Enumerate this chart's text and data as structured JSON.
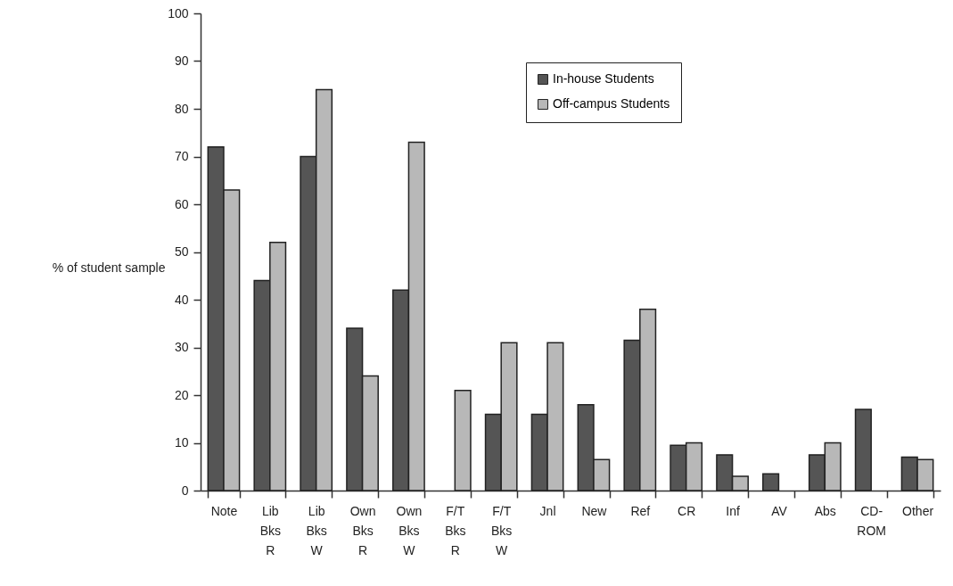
{
  "chart_data": {
    "type": "bar",
    "ylabel": "% of student sample",
    "categories": [
      "Note",
      "Lib Bks R",
      "Lib Bks W",
      "Own Bks R",
      "Own Bks W",
      "F/T Bks R",
      "F/T Bks W",
      "Jnl",
      "New",
      "Ref",
      "CR",
      "Inf",
      "AV",
      "Abs",
      "CD- ROM",
      "Other"
    ],
    "series": [
      {
        "name": "In-house Students",
        "color": "#555555",
        "values": [
          72,
          44,
          70,
          34,
          42,
          null,
          16,
          16,
          18,
          31.5,
          9.5,
          7.5,
          3.5,
          7.5,
          17,
          7
        ]
      },
      {
        "name": "Off-campus Students",
        "color": "#b8b8b8",
        "values": [
          63,
          52,
          84,
          24,
          73,
          21,
          31,
          31,
          6.5,
          38,
          10,
          3,
          null,
          10,
          null,
          6.5
        ]
      }
    ],
    "ylim": [
      0,
      100
    ],
    "yticks": [
      0,
      10,
      20,
      30,
      40,
      50,
      60,
      70,
      80,
      90,
      100
    ],
    "grid": false,
    "legend": "top right"
  }
}
